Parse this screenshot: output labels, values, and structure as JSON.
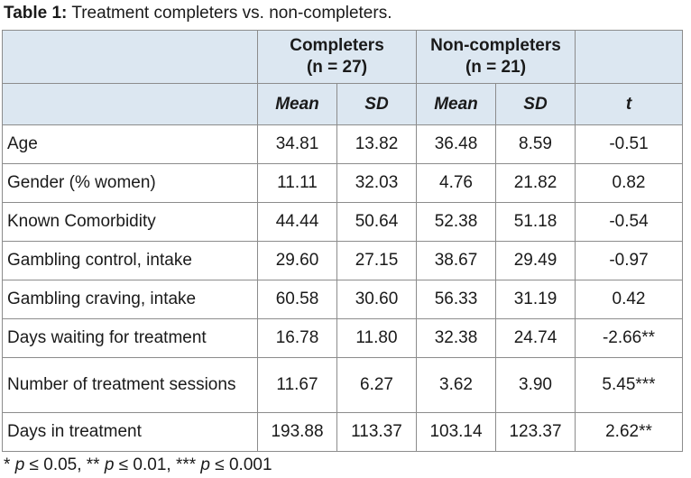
{
  "caption": {
    "label": "Table 1:",
    "text": " Treatment completers vs. non-completers."
  },
  "header": {
    "groups": [
      {
        "line1": "Completers",
        "line2": "(n = 27)"
      },
      {
        "line1": "Non-completers",
        "line2": "(n = 21)"
      }
    ],
    "subheaders": [
      "Mean",
      "SD",
      "Mean",
      "SD",
      "t"
    ]
  },
  "rows": [
    {
      "label": "Age",
      "values": [
        "34.81",
        "13.82",
        "36.48",
        "8.59",
        "-0.51"
      ]
    },
    {
      "label": "Gender (% women)",
      "values": [
        "11.11",
        "32.03",
        "4.76",
        "21.82",
        "0.82"
      ]
    },
    {
      "label": "Known Comorbidity",
      "values": [
        "44.44",
        "50.64",
        "52.38",
        "51.18",
        "-0.54"
      ]
    },
    {
      "label": "Gambling control, intake",
      "values": [
        "29.60",
        "27.15",
        "38.67",
        "29.49",
        "-0.97"
      ]
    },
    {
      "label": "Gambling craving, intake",
      "values": [
        "60.58",
        "30.60",
        "56.33",
        "31.19",
        "0.42"
      ]
    },
    {
      "label": "Days waiting for treatment",
      "values": [
        "16.78",
        "11.80",
        "32.38",
        "24.74",
        "-2.66**"
      ]
    },
    {
      "label": "Number of treatment sessions",
      "values": [
        "11.67",
        "6.27",
        "3.62",
        "3.90",
        "5.45***"
      ]
    },
    {
      "label": "Days in treatment",
      "values": [
        "193.88",
        "113.37",
        "103.14",
        "123.37",
        "2.62**"
      ]
    }
  ],
  "footnote": {
    "parts": [
      {
        "text": "* ",
        "italic": false
      },
      {
        "text": "p",
        "italic": true
      },
      {
        "text": " ≤ 0.05, ** ",
        "italic": false
      },
      {
        "text": "p",
        "italic": true
      },
      {
        "text": " ≤ 0.01, *** ",
        "italic": false
      },
      {
        "text": "p",
        "italic": true
      },
      {
        "text": " ≤ 0.001",
        "italic": false
      }
    ]
  }
}
